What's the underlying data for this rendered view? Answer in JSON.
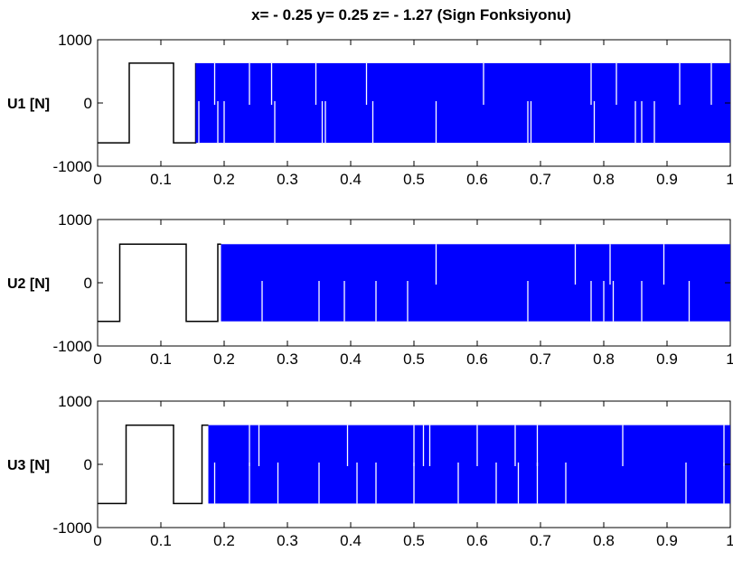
{
  "title": "x= - 0.25  y= 0.25  z= - 1.27 (Sign Fonksiyonu)",
  "colors": {
    "fill": "#0000ff",
    "line": "#000000",
    "gap": "#ffffff"
  },
  "chart_data": [
    {
      "type": "line",
      "ylabel": "U1 [N]",
      "xlim": [
        0,
        1
      ],
      "ylim": [
        -1000,
        1000
      ],
      "xticks": [
        0,
        0.1,
        0.2,
        0.3,
        0.4,
        0.5,
        0.6,
        0.7,
        0.8,
        0.9,
        1
      ],
      "xticklabels": [
        "0",
        "0.1",
        "0.2",
        "0.3",
        "0.4",
        "0.5",
        "0.6",
        "0.7",
        "0.8",
        "0.9",
        "1"
      ],
      "yticks": [
        -1000,
        0,
        1000
      ],
      "yticklabels": [
        "-1000",
        "0",
        "1000"
      ],
      "levels": [
        -630,
        630
      ],
      "steps": [
        [
          0,
          -630
        ],
        [
          0.05,
          630
        ],
        [
          0.12,
          -630
        ],
        [
          0.155,
          630
        ]
      ],
      "chatter_start": 0.155,
      "chatter_gaps_high": [
        0.185,
        0.24,
        0.275,
        0.345,
        0.425,
        0.61,
        0.78,
        0.82,
        0.92,
        0.97
      ],
      "chatter_gaps_low": [
        0.16,
        0.19,
        0.2,
        0.28,
        0.355,
        0.36,
        0.435,
        0.535,
        0.68,
        0.685,
        0.785,
        0.85,
        0.86,
        0.88
      ]
    },
    {
      "type": "line",
      "ylabel": "U2 [N]",
      "xlim": [
        0,
        1
      ],
      "ylim": [
        -1000,
        1000
      ],
      "xticks": [
        0,
        0.1,
        0.2,
        0.3,
        0.4,
        0.5,
        0.6,
        0.7,
        0.8,
        0.9,
        1
      ],
      "xticklabels": [
        "0",
        "0.1",
        "0.2",
        "0.3",
        "0.4",
        "0.5",
        "0.6",
        "0.7",
        "0.8",
        "0.9",
        "1"
      ],
      "yticks": [
        -1000,
        0,
        1000
      ],
      "yticklabels": [
        "-1000",
        "0",
        "1000"
      ],
      "levels": [
        -610,
        610
      ],
      "steps": [
        [
          0,
          -610
        ],
        [
          0.035,
          610
        ],
        [
          0.14,
          -610
        ],
        [
          0.19,
          610
        ]
      ],
      "chatter_start": 0.195,
      "chatter_gaps_high": [
        0.535,
        0.755,
        0.81,
        0.895
      ],
      "chatter_gaps_low": [
        0.26,
        0.35,
        0.39,
        0.44,
        0.49,
        0.68,
        0.78,
        0.8,
        0.815,
        0.86,
        0.935
      ]
    },
    {
      "type": "line",
      "ylabel": "U3 [N]",
      "xlim": [
        0,
        1
      ],
      "ylim": [
        -1000,
        1000
      ],
      "xticks": [
        0,
        0.1,
        0.2,
        0.3,
        0.4,
        0.5,
        0.6,
        0.7,
        0.8,
        0.9,
        1
      ],
      "xticklabels": [
        "0",
        "0.1",
        "0.2",
        "0.3",
        "0.4",
        "0.5",
        "0.6",
        "0.7",
        "0.8",
        "0.9",
        "1"
      ],
      "yticks": [
        -1000,
        0,
        1000
      ],
      "yticklabels": [
        "-1000",
        "0",
        "1000"
      ],
      "levels": [
        -620,
        620
      ],
      "steps": [
        [
          0,
          -620
        ],
        [
          0.045,
          620
        ],
        [
          0.12,
          -620
        ],
        [
          0.165,
          620
        ]
      ],
      "chatter_start": 0.175,
      "chatter_gaps_high": [
        0.24,
        0.255,
        0.395,
        0.5,
        0.515,
        0.525,
        0.6,
        0.66,
        0.695,
        0.83,
        0.99
      ],
      "chatter_gaps_low": [
        0.185,
        0.24,
        0.285,
        0.35,
        0.41,
        0.44,
        0.5,
        0.57,
        0.63,
        0.665,
        0.695,
        0.74,
        0.93,
        0.99
      ]
    }
  ]
}
